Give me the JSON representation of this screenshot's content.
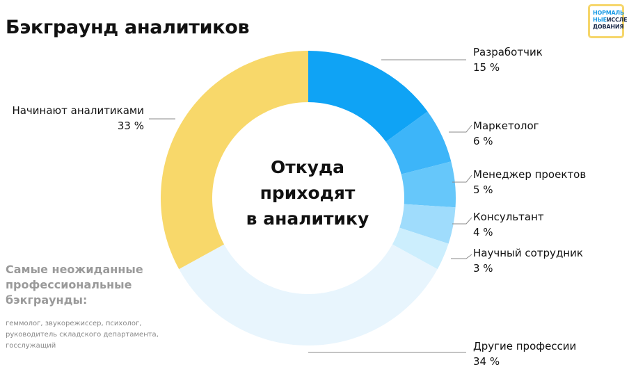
{
  "title": "Бэкграунд аналитиков",
  "logo": {
    "line1": "НОРМАЛЬ",
    "line2_a": "НЫЕ",
    "line2_b": "ИССЛЕ",
    "line3": "ДОВАНИЯ"
  },
  "center_text": [
    "Откуда",
    "приходят",
    "в аналитику"
  ],
  "note": {
    "title": "Самые неожиданные профессиональные бэкграунды:",
    "text": "геммолог, звукорежиссер, психолог, руководитель складского департамента, госслужащий"
  },
  "chart_data": {
    "type": "pie",
    "title": "Бэкграунд аналитиков",
    "slices": [
      {
        "label": "Разработчик",
        "value": 15,
        "value_label": "15 %",
        "color": "#0fa3f5"
      },
      {
        "label": "Маркетолог",
        "value": 6,
        "value_label": "6 %",
        "color": "#3db5f9"
      },
      {
        "label": "Менеджер проектов",
        "value": 5,
        "value_label": "5 %",
        "color": "#66c7fa"
      },
      {
        "label": "Консультант",
        "value": 4,
        "value_label": "4 %",
        "color": "#9fdcfc"
      },
      {
        "label": "Научный сотрудник",
        "value": 3,
        "value_label": "3 %",
        "color": "#cceefd"
      },
      {
        "label": "Другие профессии",
        "value": 34,
        "value_label": "34 %",
        "color": "#e8f5fd"
      },
      {
        "label": "Начинают аналитиками",
        "value": 33,
        "value_label": "33 %",
        "color": "#f8d86a"
      }
    ]
  }
}
